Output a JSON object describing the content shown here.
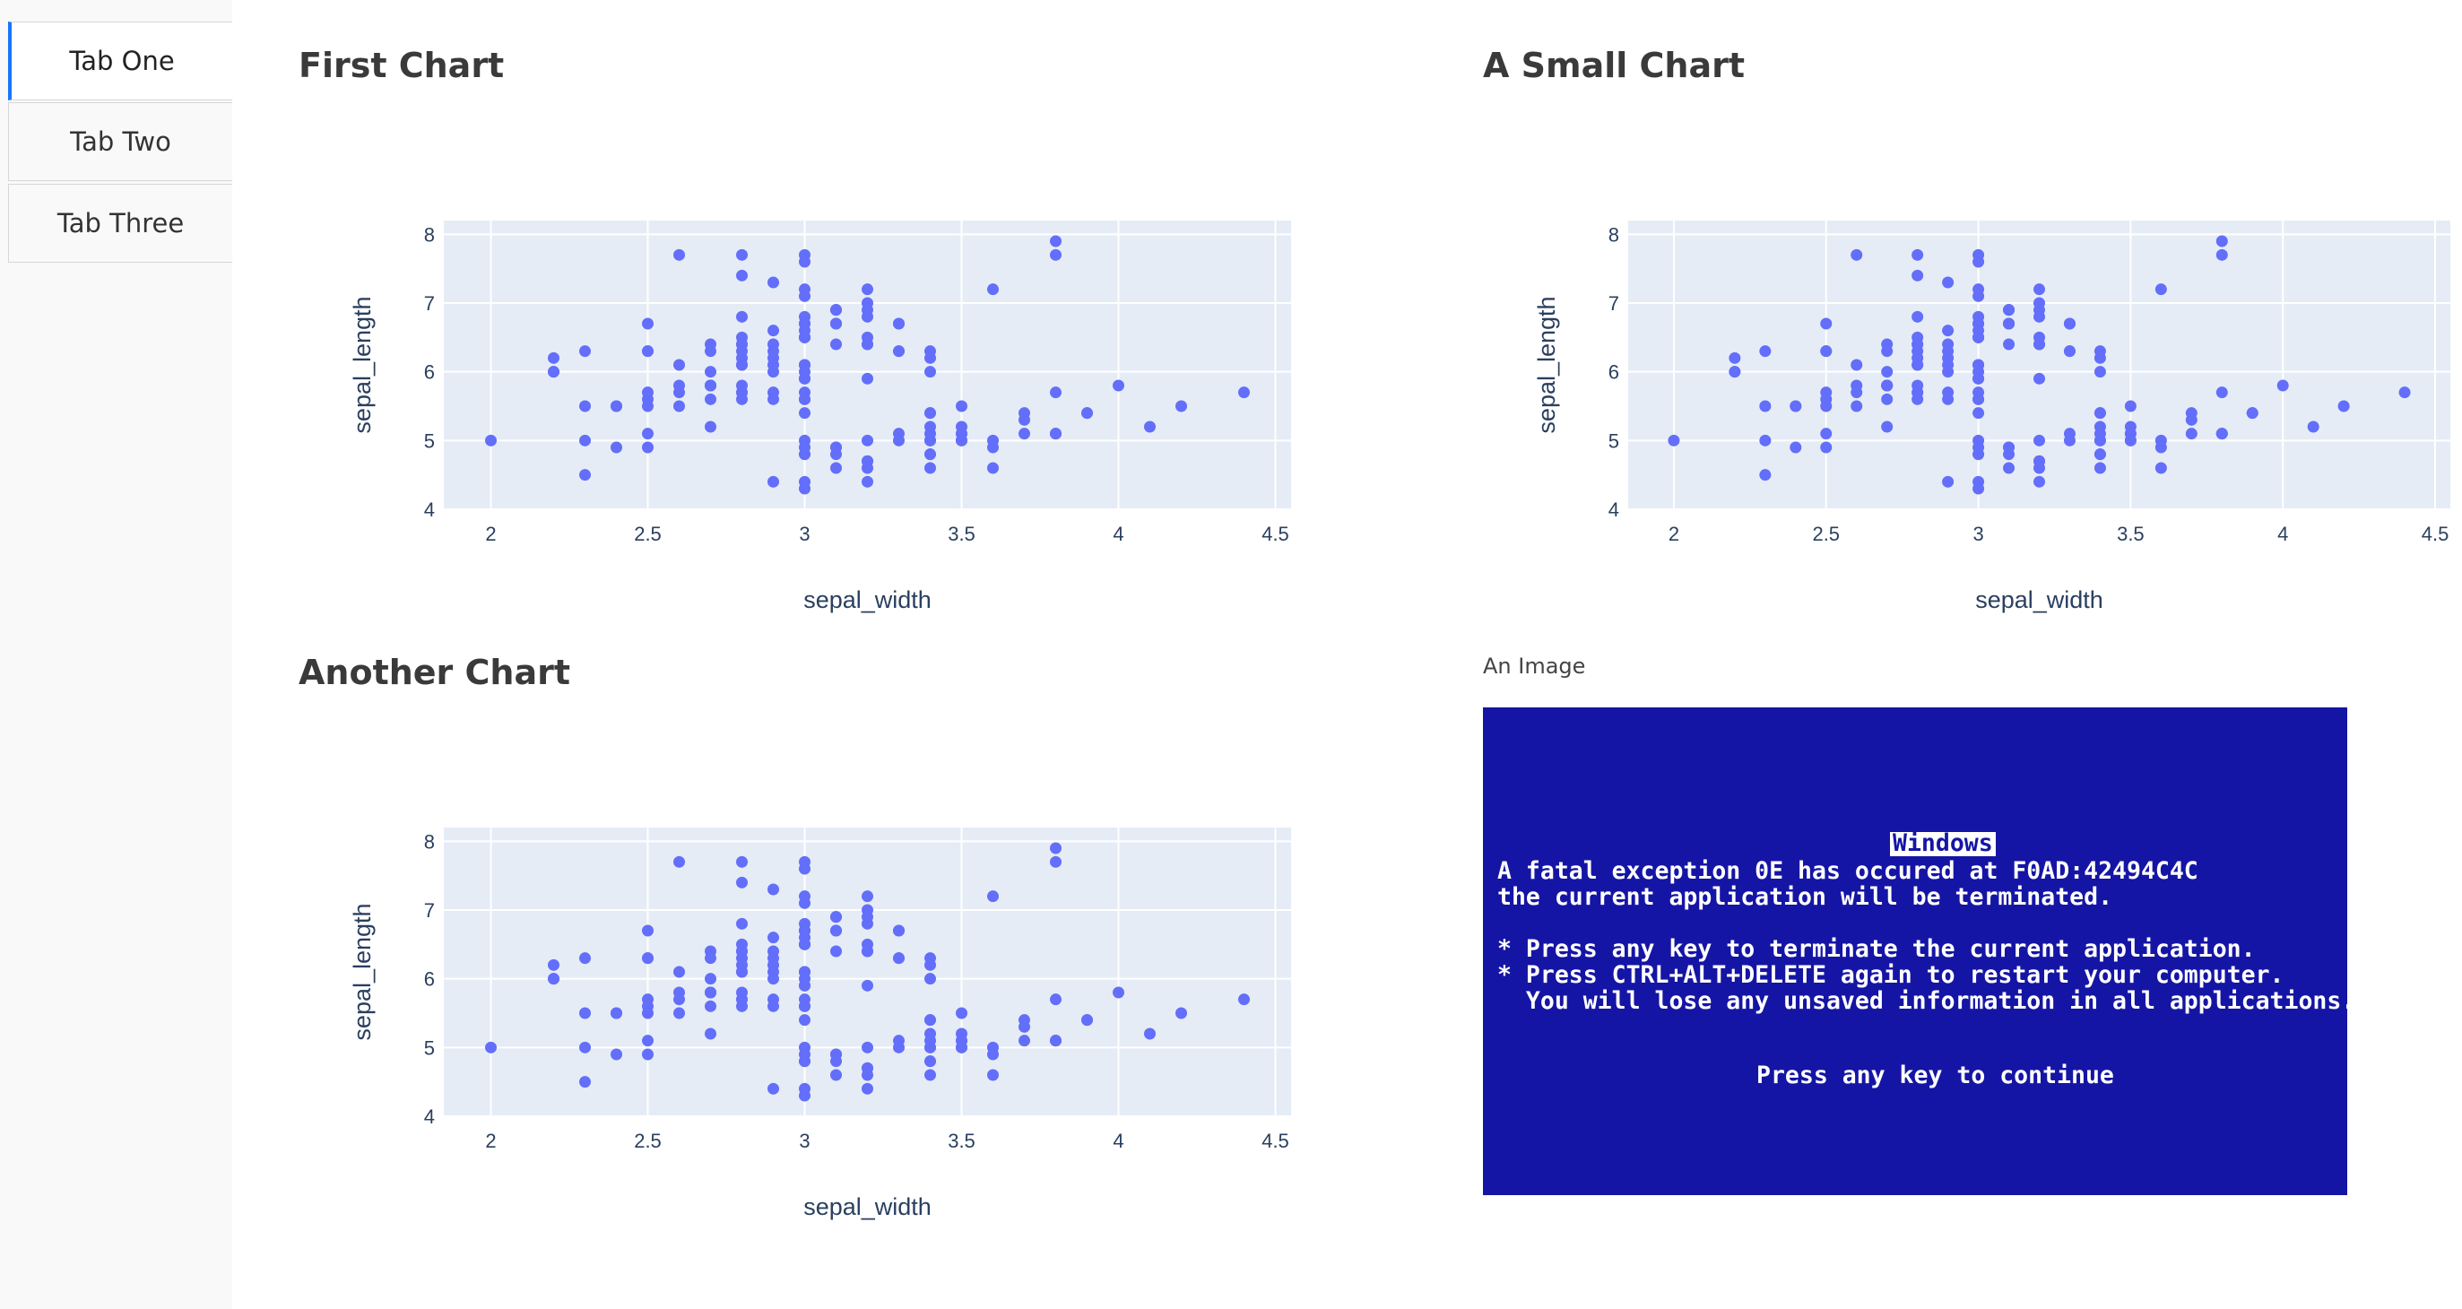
{
  "tabs": [
    {
      "label": "Tab One",
      "active": true
    },
    {
      "label": "Tab Two",
      "active": false
    },
    {
      "label": "Tab Three",
      "active": false
    }
  ],
  "charts": {
    "first": {
      "title": "First Chart"
    },
    "small": {
      "title": "A Small Chart"
    },
    "another": {
      "title": "Another Chart"
    }
  },
  "image": {
    "label": "An Image",
    "bsod": {
      "title": "Windows",
      "lines": [
        "A fatal exception 0E has occured at F0AD:42494C4C",
        "the current application will be terminated.",
        "",
        "* Press any key to terminate the current application.",
        "* Press CTRL+ALT+DELETE again to restart your computer.",
        "  You will lose any unsaved information in all applications."
      ],
      "continue": "Press any key to continue"
    }
  },
  "colors": {
    "accent": "#1975fa",
    "marker": "#636efa",
    "plot_bg": "#e5ecf6",
    "bsod_bg": "#1515a5"
  },
  "chart_data": [
    {
      "type": "scatter",
      "title": "First Chart",
      "xlabel": "sepal_width",
      "ylabel": "sepal_length",
      "xlim": [
        1.85,
        4.55
      ],
      "ylim": [
        4,
        8.2
      ],
      "xticks": [
        2,
        2.5,
        3,
        3.5,
        4,
        4.5
      ],
      "yticks": [
        4,
        5,
        6,
        7,
        8
      ],
      "grid": true,
      "points_ref": "iris"
    },
    {
      "type": "scatter",
      "title": "A Small Chart",
      "xlabel": "sepal_width",
      "ylabel": "sepal_length",
      "xlim": [
        1.85,
        4.55
      ],
      "ylim": [
        4,
        8.2
      ],
      "xticks": [
        2,
        2.5,
        3,
        3.5,
        4,
        4.5
      ],
      "yticks": [
        4,
        5,
        6,
        7,
        8
      ],
      "grid": true,
      "points_ref": "iris"
    },
    {
      "type": "scatter",
      "title": "Another Chart",
      "xlabel": "sepal_width",
      "ylabel": "sepal_length",
      "xlim": [
        1.85,
        4.55
      ],
      "ylim": [
        4,
        8.2
      ],
      "xticks": [
        2,
        2.5,
        3,
        3.5,
        4,
        4.5
      ],
      "yticks": [
        4,
        5,
        6,
        7,
        8
      ],
      "grid": true,
      "points_ref": "iris"
    }
  ],
  "iris": [
    [
      3.5,
      5.1
    ],
    [
      3.0,
      4.9
    ],
    [
      3.2,
      4.7
    ],
    [
      3.1,
      4.6
    ],
    [
      3.6,
      5.0
    ],
    [
      3.9,
      5.4
    ],
    [
      3.4,
      4.6
    ],
    [
      3.4,
      5.0
    ],
    [
      2.9,
      4.4
    ],
    [
      3.1,
      4.9
    ],
    [
      3.7,
      5.4
    ],
    [
      3.4,
      4.8
    ],
    [
      3.0,
      4.8
    ],
    [
      3.0,
      4.3
    ],
    [
      4.0,
      5.8
    ],
    [
      4.4,
      5.7
    ],
    [
      3.9,
      5.4
    ],
    [
      3.5,
      5.1
    ],
    [
      3.8,
      5.7
    ],
    [
      3.8,
      5.1
    ],
    [
      3.4,
      5.4
    ],
    [
      3.7,
      5.1
    ],
    [
      3.6,
      4.6
    ],
    [
      3.3,
      5.1
    ],
    [
      3.4,
      4.8
    ],
    [
      3.0,
      5.0
    ],
    [
      3.4,
      5.0
    ],
    [
      3.5,
      5.2
    ],
    [
      3.4,
      5.2
    ],
    [
      3.2,
      4.7
    ],
    [
      3.1,
      4.8
    ],
    [
      3.4,
      5.4
    ],
    [
      4.1,
      5.2
    ],
    [
      4.2,
      5.5
    ],
    [
      3.1,
      4.9
    ],
    [
      3.2,
      5.0
    ],
    [
      3.5,
      5.5
    ],
    [
      3.6,
      4.9
    ],
    [
      3.0,
      4.4
    ],
    [
      3.4,
      5.1
    ],
    [
      3.5,
      5.0
    ],
    [
      2.3,
      4.5
    ],
    [
      3.2,
      4.4
    ],
    [
      3.5,
      5.0
    ],
    [
      3.8,
      5.1
    ],
    [
      3.0,
      4.8
    ],
    [
      3.8,
      5.1
    ],
    [
      3.2,
      4.6
    ],
    [
      3.7,
      5.3
    ],
    [
      3.3,
      5.0
    ],
    [
      3.2,
      7.0
    ],
    [
      3.2,
      6.4
    ],
    [
      3.1,
      6.9
    ],
    [
      2.3,
      5.5
    ],
    [
      2.8,
      6.5
    ],
    [
      2.8,
      5.7
    ],
    [
      3.3,
      6.3
    ],
    [
      2.4,
      4.9
    ],
    [
      2.9,
      6.6
    ],
    [
      2.7,
      5.2
    ],
    [
      2.0,
      5.0
    ],
    [
      3.0,
      5.9
    ],
    [
      2.2,
      6.0
    ],
    [
      2.9,
      6.1
    ],
    [
      2.9,
      5.6
    ],
    [
      3.1,
      6.7
    ],
    [
      3.0,
      5.6
    ],
    [
      2.7,
      5.8
    ],
    [
      2.2,
      6.2
    ],
    [
      2.5,
      5.6
    ],
    [
      3.2,
      5.9
    ],
    [
      2.8,
      6.1
    ],
    [
      2.5,
      6.3
    ],
    [
      2.8,
      6.1
    ],
    [
      2.9,
      6.4
    ],
    [
      3.0,
      6.6
    ],
    [
      2.8,
      6.8
    ],
    [
      3.0,
      6.7
    ],
    [
      2.9,
      6.0
    ],
    [
      2.6,
      5.7
    ],
    [
      2.4,
      5.5
    ],
    [
      2.4,
      5.5
    ],
    [
      2.7,
      5.8
    ],
    [
      2.7,
      6.0
    ],
    [
      3.0,
      5.4
    ],
    [
      3.4,
      6.0
    ],
    [
      3.1,
      6.7
    ],
    [
      2.3,
      6.3
    ],
    [
      3.0,
      5.6
    ],
    [
      2.5,
      5.5
    ],
    [
      2.6,
      5.5
    ],
    [
      3.0,
      6.1
    ],
    [
      2.6,
      5.8
    ],
    [
      2.3,
      5.0
    ],
    [
      2.7,
      5.6
    ],
    [
      3.0,
      5.7
    ],
    [
      2.9,
      5.7
    ],
    [
      2.9,
      6.2
    ],
    [
      2.5,
      5.1
    ],
    [
      2.8,
      5.7
    ],
    [
      3.3,
      6.3
    ],
    [
      2.7,
      5.8
    ],
    [
      3.0,
      7.1
    ],
    [
      2.9,
      6.3
    ],
    [
      3.0,
      6.5
    ],
    [
      3.0,
      7.6
    ],
    [
      2.5,
      4.9
    ],
    [
      2.9,
      7.3
    ],
    [
      2.5,
      6.7
    ],
    [
      3.6,
      7.2
    ],
    [
      3.2,
      6.5
    ],
    [
      2.7,
      6.4
    ],
    [
      3.0,
      6.8
    ],
    [
      2.5,
      5.7
    ],
    [
      2.8,
      5.8
    ],
    [
      3.2,
      6.4
    ],
    [
      3.0,
      6.5
    ],
    [
      3.8,
      7.7
    ],
    [
      2.6,
      7.7
    ],
    [
      2.2,
      6.0
    ],
    [
      3.2,
      6.9
    ],
    [
      2.8,
      5.6
    ],
    [
      2.8,
      7.7
    ],
    [
      2.7,
      6.3
    ],
    [
      3.3,
      6.7
    ],
    [
      3.2,
      7.2
    ],
    [
      2.8,
      6.2
    ],
    [
      3.0,
      6.1
    ],
    [
      2.8,
      6.4
    ],
    [
      3.0,
      7.2
    ],
    [
      2.8,
      7.4
    ],
    [
      3.8,
      7.9
    ],
    [
      2.8,
      6.4
    ],
    [
      2.8,
      6.3
    ],
    [
      2.6,
      6.1
    ],
    [
      3.0,
      7.7
    ],
    [
      3.4,
      6.3
    ],
    [
      3.1,
      6.4
    ],
    [
      3.0,
      6.0
    ],
    [
      3.1,
      6.9
    ],
    [
      3.1,
      6.7
    ],
    [
      3.1,
      6.9
    ],
    [
      2.7,
      5.8
    ],
    [
      3.2,
      6.8
    ],
    [
      3.3,
      6.7
    ],
    [
      3.0,
      6.7
    ],
    [
      2.5,
      6.3
    ],
    [
      3.0,
      6.5
    ],
    [
      3.4,
      6.2
    ],
    [
      3.0,
      5.9
    ]
  ]
}
